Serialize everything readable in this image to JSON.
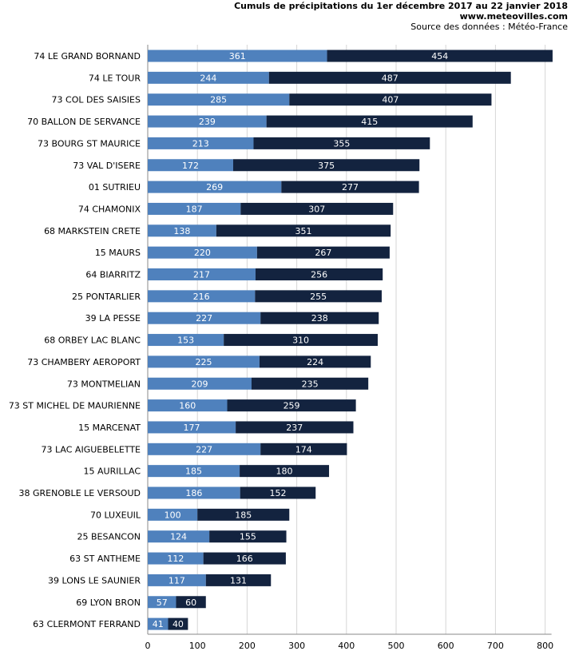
{
  "header": {
    "title": "Cumuls de précipitations du 1er décembre 2017 au 22 janvier 2018",
    "site": "www.meteovilles.com",
    "source": "Source des données : Météo-France"
  },
  "chart_data": {
    "type": "bar",
    "orientation": "horizontal",
    "stacked": true,
    "title": "Cumuls de précipitations du 1er décembre 2017 au 22 janvier 2018",
    "xlabel": "",
    "ylabel": "",
    "xlim": [
      0,
      800
    ],
    "xticks": [
      0,
      100,
      200,
      300,
      400,
      500,
      600,
      700,
      800
    ],
    "grid": true,
    "legend": "none",
    "categories": [
      "74 LE GRAND BORNAND",
      "74 LE TOUR",
      "73 COL DES SAISIES",
      "70 BALLON DE SERVANCE",
      "73 BOURG ST MAURICE",
      "73 VAL D'ISERE",
      "01 SUTRIEU",
      "74 CHAMONIX",
      "68 MARKSTEIN CRETE",
      "15 MAURS",
      "64 BIARRITZ",
      "25 PONTARLIER",
      "39 LA PESSE",
      "68 ORBEY LAC BLANC",
      "73 CHAMBERY AEROPORT",
      "73 MONTMELIAN",
      "73 ST MICHEL DE MAURIENNE",
      "15 MARCENAT",
      "73 LAC AIGUEBELETTE",
      "15 AURILLAC",
      "38 GRENOBLE LE VERSOUD",
      "70 LUXEUIL",
      "25 BESANCON",
      "63 ST ANTHEME",
      "39 LONS LE SAUNIER",
      "69 LYON BRON",
      "63 CLERMONT FERRAND"
    ],
    "series": [
      {
        "color": "#4f81bd",
        "values": [
          361,
          244,
          285,
          239,
          213,
          172,
          269,
          187,
          138,
          220,
          217,
          216,
          227,
          153,
          225,
          209,
          160,
          177,
          227,
          185,
          186,
          100,
          124,
          112,
          117,
          57,
          41
        ]
      },
      {
        "color": "#13233f",
        "values": [
          454,
          487,
          407,
          415,
          355,
          375,
          277,
          307,
          351,
          267,
          256,
          255,
          238,
          310,
          224,
          235,
          259,
          237,
          174,
          180,
          152,
          185,
          155,
          166,
          131,
          60,
          40
        ]
      }
    ]
  }
}
